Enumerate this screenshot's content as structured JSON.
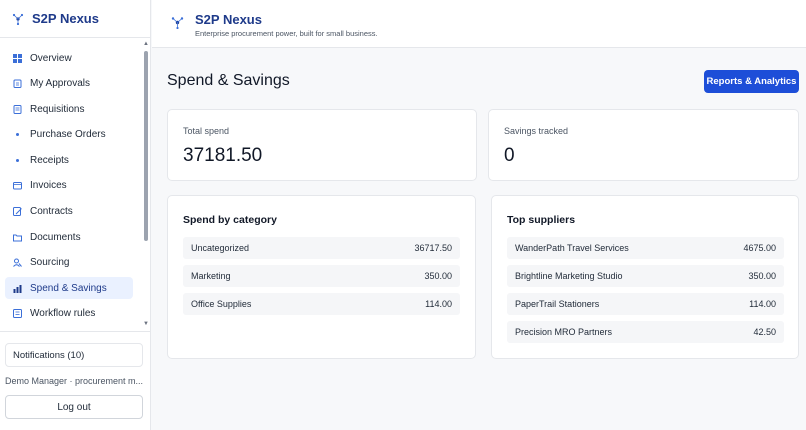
{
  "brand": {
    "name": "S2P Nexus"
  },
  "header": {
    "title": "S2P Nexus",
    "tagline": "Enterprise procurement power, built for small business."
  },
  "sidebar": {
    "items": [
      {
        "label": "Overview",
        "icon": "grid-icon",
        "active": false
      },
      {
        "label": "My Approvals",
        "icon": "clipboard-icon",
        "active": false
      },
      {
        "label": "Requisitions",
        "icon": "list-icon",
        "active": false
      },
      {
        "label": "Purchase Orders",
        "icon": "dot-icon",
        "active": false
      },
      {
        "label": "Receipts",
        "icon": "dot-icon",
        "active": false
      },
      {
        "label": "Invoices",
        "icon": "invoice-icon",
        "active": false
      },
      {
        "label": "Contracts",
        "icon": "pen-icon",
        "active": false
      },
      {
        "label": "Documents",
        "icon": "folder-icon",
        "active": false
      },
      {
        "label": "Sourcing",
        "icon": "people-icon",
        "active": false
      },
      {
        "label": "Spend & Savings",
        "icon": "bar-chart-icon",
        "active": true
      },
      {
        "label": "Workflow rules",
        "icon": "workflow-icon",
        "active": false
      }
    ],
    "notifications_label": "Notifications (10)",
    "user_label": "Demo Manager · procurement m...",
    "logout_label": "Log out"
  },
  "main": {
    "title": "Spend & Savings",
    "reports_button": "Reports & Analytics",
    "total_spend": {
      "label": "Total spend",
      "value": "37181.50"
    },
    "savings": {
      "label": "Savings tracked",
      "value": "0"
    },
    "by_category": {
      "title": "Spend by category",
      "rows": [
        {
          "name": "Uncategorized",
          "value": "36717.50"
        },
        {
          "name": "Marketing",
          "value": "350.00"
        },
        {
          "name": "Office Supplies",
          "value": "114.00"
        }
      ]
    },
    "top_suppliers": {
      "title": "Top suppliers",
      "rows": [
        {
          "name": "WanderPath Travel Services",
          "value": "4675.00"
        },
        {
          "name": "Brightline Marketing Studio",
          "value": "350.00"
        },
        {
          "name": "PaperTrail Stationers",
          "value": "114.00"
        },
        {
          "name": "Precision MRO Partners",
          "value": "42.50"
        }
      ]
    }
  },
  "colors": {
    "brand": "#1e3a8a",
    "accent": "#1d4ed8",
    "active_bg": "#eaf1ff",
    "icon": "#3b6fd8"
  }
}
